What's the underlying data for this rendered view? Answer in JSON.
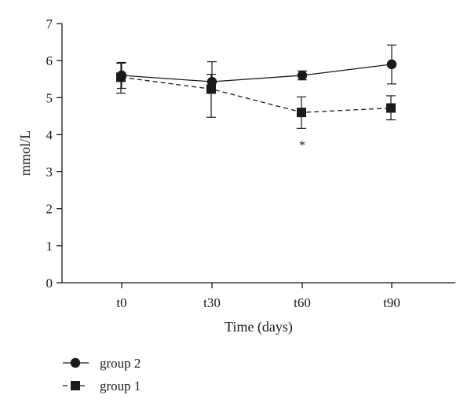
{
  "chart_data": {
    "type": "line",
    "title": "",
    "xlabel": "Time (days)",
    "ylabel": "mmol/L",
    "categories": [
      "t0",
      "t30",
      "t60",
      "t90"
    ],
    "ylim": [
      0,
      7
    ],
    "yticks": [
      0,
      1,
      2,
      3,
      4,
      5,
      6,
      7
    ],
    "grid": false,
    "legend_position": "bottom-left",
    "series": [
      {
        "name": "group 2",
        "marker": "circle",
        "line_style": "solid",
        "color": "#1a1a1a",
        "values": [
          5.6,
          5.43,
          5.6,
          5.9
        ],
        "error_low": [
          5.25,
          5.2,
          5.48,
          5.37
        ],
        "error_high": [
          5.95,
          5.97,
          5.72,
          6.42
        ]
      },
      {
        "name": "group 1",
        "marker": "square",
        "line_style": "dashed",
        "color": "#1a1a1a",
        "values": [
          5.55,
          5.23,
          4.6,
          4.72
        ],
        "error_low": [
          5.12,
          4.47,
          4.17,
          4.4
        ],
        "error_high": [
          5.93,
          5.63,
          5.02,
          5.05
        ]
      }
    ],
    "annotations": [
      {
        "text": "*",
        "category": "t60",
        "y": 3.9
      }
    ]
  }
}
